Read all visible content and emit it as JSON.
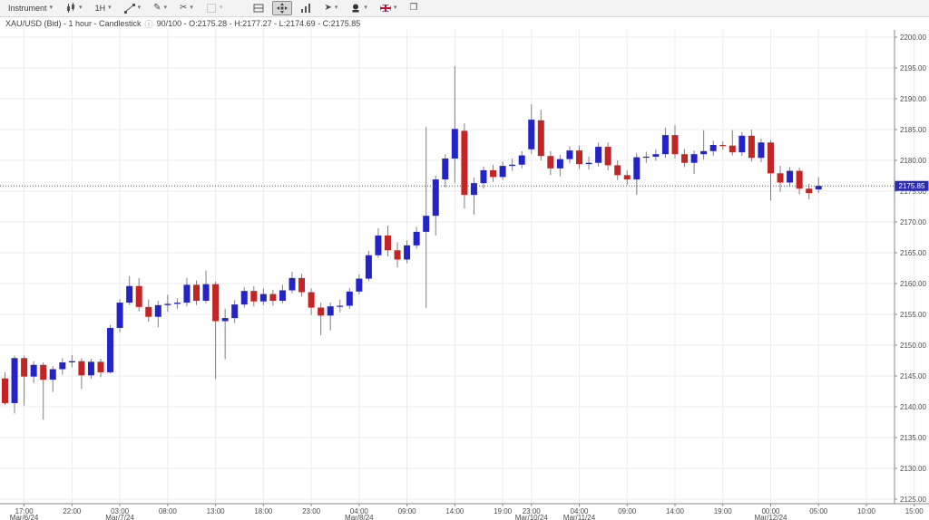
{
  "toolbar": {
    "items": [
      {
        "name": "instrument-selector",
        "label": "Instrument",
        "caret": true
      },
      {
        "name": "chart-type-button",
        "icon": "candlestick-icon",
        "caret": true
      },
      {
        "name": "timeframe-button",
        "label": "1H",
        "caret": true
      },
      {
        "name": "trendline-tool-button",
        "icon": "trendline-icon",
        "caret": true
      },
      {
        "name": "draw-tool-button",
        "icon": "pencil-icon",
        "glyph": "✎",
        "caret": true
      },
      {
        "name": "annotation-tool-button",
        "icon": "scissors-icon",
        "glyph": "✂",
        "caret": true
      },
      {
        "name": "shapes-tool-button",
        "icon": "shape-icon",
        "caret": true,
        "disabled": true
      },
      {
        "name": "split-view-button",
        "icon": "split-icon",
        "gap_before": true
      },
      {
        "name": "fit-chart-button",
        "icon": "expand-icon",
        "active": true
      },
      {
        "name": "volume-button",
        "icon": "bars-icon"
      },
      {
        "name": "pointer-button",
        "icon": "pointer-icon",
        "glyph": "➤",
        "caret": true
      },
      {
        "name": "marker-button",
        "icon": "marker-icon",
        "caret": true
      },
      {
        "name": "language-button",
        "icon": "uk-flag-icon",
        "caret": true
      },
      {
        "name": "windows-button",
        "icon": "window-icon",
        "glyph": "❐"
      }
    ]
  },
  "title_bar": {
    "left": "XAU/USD (Bid) - 1 hour - Candlestick",
    "info_glyph": "ⓘ",
    "right": "90/100 - O:2175.28 - H:2177.27 - L:2174.69 - C:2175.85"
  },
  "chart_data": {
    "type": "candlestick",
    "symbol": "XAU/USD",
    "quote_side": "Bid",
    "timeframe": "1 hour",
    "current_price": 2175.85,
    "current_price_label": "2175.85",
    "last_candle": {
      "open": 2175.28,
      "high": 2177.27,
      "low": 2174.69,
      "close": 2175.85
    },
    "y_axis": {
      "min": 2125,
      "max": 2200,
      "step": 5
    },
    "x_axis": {
      "labels": [
        {
          "i": 2,
          "time": "17:00",
          "date": "Mar/6/24"
        },
        {
          "i": 7,
          "time": "22:00"
        },
        {
          "i": 12,
          "time": "03:00",
          "date": "Mar/7/24"
        },
        {
          "i": 17,
          "time": "08:00"
        },
        {
          "i": 22,
          "time": "13:00"
        },
        {
          "i": 27,
          "time": "18:00"
        },
        {
          "i": 32,
          "time": "23:00"
        },
        {
          "i": 37,
          "time": "04:00",
          "date": "Mar/8/24"
        },
        {
          "i": 42,
          "time": "09:00"
        },
        {
          "i": 47,
          "time": "14:00"
        },
        {
          "i": 52,
          "time": "19:00"
        },
        {
          "i": 55,
          "time": "23:00",
          "date": "Mar/10/24"
        },
        {
          "i": 60,
          "time": "04:00",
          "date": "Mar/11/24"
        },
        {
          "i": 65,
          "time": "09:00"
        },
        {
          "i": 70,
          "time": "14:00"
        },
        {
          "i": 75,
          "time": "19:00"
        },
        {
          "i": 80,
          "time": "00:00",
          "date": "Mar/12/24"
        },
        {
          "i": 85,
          "time": "05:00"
        },
        {
          "i": 90,
          "time": "10:00"
        },
        {
          "i": 95,
          "time": "15:00"
        }
      ]
    },
    "times": [
      "Mar/6 15:00",
      "Mar/6 16:00",
      "Mar/6 17:00",
      "Mar/6 18:00",
      "Mar/6 19:00",
      "Mar/6 20:00",
      "Mar/6 21:00",
      "Mar/6 22:00",
      "Mar/6 23:00",
      "Mar/7 00:00",
      "Mar/7 01:00",
      "Mar/7 02:00",
      "Mar/7 03:00",
      "Mar/7 04:00",
      "Mar/7 05:00",
      "Mar/7 06:00",
      "Mar/7 07:00",
      "Mar/7 08:00",
      "Mar/7 09:00",
      "Mar/7 10:00",
      "Mar/7 11:00",
      "Mar/7 12:00",
      "Mar/7 13:00",
      "Mar/7 14:00",
      "Mar/7 15:00",
      "Mar/7 16:00",
      "Mar/7 17:00",
      "Mar/7 18:00",
      "Mar/7 19:00",
      "Mar/7 20:00",
      "Mar/7 21:00",
      "Mar/7 22:00",
      "Mar/7 23:00",
      "Mar/8 00:00",
      "Mar/8 01:00",
      "Mar/8 02:00",
      "Mar/8 03:00",
      "Mar/8 04:00",
      "Mar/8 05:00",
      "Mar/8 06:00",
      "Mar/8 07:00",
      "Mar/8 08:00",
      "Mar/8 09:00",
      "Mar/8 10:00",
      "Mar/8 11:00",
      "Mar/8 12:00",
      "Mar/8 13:00",
      "Mar/8 14:00",
      "Mar/8 15:00",
      "Mar/8 16:00",
      "Mar/8 17:00",
      "Mar/8 18:00",
      "Mar/8 19:00",
      "Mar/8 20:00",
      "Mar/8 21:00",
      "Mar/10 23:00",
      "Mar/11 00:00",
      "Mar/11 01:00",
      "Mar/11 02:00",
      "Mar/11 03:00",
      "Mar/11 04:00",
      "Mar/11 05:00",
      "Mar/11 06:00",
      "Mar/11 07:00",
      "Mar/11 08:00",
      "Mar/11 09:00",
      "Mar/11 10:00",
      "Mar/11 11:00",
      "Mar/11 12:00",
      "Mar/11 13:00",
      "Mar/11 14:00",
      "Mar/11 15:00",
      "Mar/11 16:00",
      "Mar/11 17:00",
      "Mar/11 18:00",
      "Mar/11 19:00",
      "Mar/11 20:00",
      "Mar/11 21:00",
      "Mar/11 22:00",
      "Mar/11 23:00",
      "Mar/12 00:00",
      "Mar/12 01:00",
      "Mar/12 02:00",
      "Mar/12 03:00",
      "Mar/12 04:00",
      "Mar/12 05:00"
    ],
    "ohlc": [
      [
        2144.6,
        2145.6,
        2140.3,
        2140.6
      ],
      [
        2140.6,
        2148.3,
        2138.9,
        2147.9
      ],
      [
        2147.9,
        2148.3,
        2140.2,
        2144.9
      ],
      [
        2144.9,
        2147.4,
        2143.9,
        2146.8
      ],
      [
        2146.8,
        2147.2,
        2137.9,
        2144.4
      ],
      [
        2144.4,
        2146.6,
        2142.4,
        2146.1
      ],
      [
        2146.1,
        2147.9,
        2145.2,
        2147.2
      ],
      [
        2147.2,
        2148.4,
        2146.4,
        2147.4
      ],
      [
        2147.4,
        2147.9,
        2142.9,
        2145.1
      ],
      [
        2145.1,
        2147.8,
        2144.5,
        2147.3
      ],
      [
        2147.3,
        2147.8,
        2144.8,
        2145.6
      ],
      [
        2145.6,
        2153.3,
        2145.4,
        2152.8
      ],
      [
        2152.8,
        2157.5,
        2152.1,
        2156.9
      ],
      [
        2156.9,
        2161.2,
        2156.5,
        2159.6
      ],
      [
        2159.6,
        2160.9,
        2155.5,
        2156.2
      ],
      [
        2156.2,
        2157.4,
        2153.8,
        2154.6
      ],
      [
        2154.6,
        2157.2,
        2152.9,
        2156.5
      ],
      [
        2156.5,
        2158.2,
        2155.4,
        2156.7
      ],
      [
        2156.7,
        2157.6,
        2155.9,
        2156.9
      ],
      [
        2156.9,
        2160.9,
        2156.3,
        2159.8
      ],
      [
        2159.8,
        2160.5,
        2156.5,
        2157.2
      ],
      [
        2157.2,
        2162.1,
        2156.8,
        2159.9
      ],
      [
        2159.9,
        2160.3,
        2144.5,
        2153.9
      ],
      [
        2153.9,
        2155.9,
        2147.7,
        2154.4
      ],
      [
        2154.4,
        2157.3,
        2153.6,
        2156.6
      ],
      [
        2156.6,
        2159.4,
        2156.1,
        2158.8
      ],
      [
        2158.8,
        2159.6,
        2156.3,
        2157.1
      ],
      [
        2157.1,
        2159.2,
        2156.5,
        2158.3
      ],
      [
        2158.3,
        2159.0,
        2156.4,
        2157.2
      ],
      [
        2157.2,
        2159.8,
        2156.8,
        2158.9
      ],
      [
        2158.9,
        2161.9,
        2158.4,
        2160.9
      ],
      [
        2160.9,
        2161.6,
        2157.9,
        2158.6
      ],
      [
        2158.6,
        2159.2,
        2154.9,
        2156.1
      ],
      [
        2156.1,
        2156.9,
        2151.6,
        2154.8
      ],
      [
        2154.8,
        2156.9,
        2152.4,
        2156.3
      ],
      [
        2156.3,
        2157.4,
        2155.3,
        2156.4
      ],
      [
        2156.4,
        2159.3,
        2155.9,
        2158.7
      ],
      [
        2158.7,
        2161.5,
        2158.2,
        2160.8
      ],
      [
        2160.8,
        2165.3,
        2160.4,
        2164.6
      ],
      [
        2164.6,
        2169.0,
        2164.2,
        2167.8
      ],
      [
        2167.8,
        2169.4,
        2164.4,
        2165.4
      ],
      [
        2165.4,
        2166.7,
        2162.6,
        2163.9
      ],
      [
        2163.9,
        2167.0,
        2163.3,
        2166.2
      ],
      [
        2166.2,
        2169.2,
        2165.7,
        2168.4
      ],
      [
        2168.4,
        2185.4,
        2156.0,
        2171.0
      ],
      [
        2171.0,
        2177.5,
        2167.8,
        2176.9
      ],
      [
        2176.9,
        2181.0,
        2175.6,
        2180.3
      ],
      [
        2180.3,
        2195.3,
        2176.3,
        2185.1
      ],
      [
        2184.8,
        2186.0,
        2172.2,
        2174.4
      ],
      [
        2174.4,
        2177.2,
        2171.2,
        2176.3
      ],
      [
        2176.3,
        2179.0,
        2175.4,
        2178.4
      ],
      [
        2178.4,
        2179.3,
        2176.5,
        2177.3
      ],
      [
        2177.3,
        2179.8,
        2176.8,
        2179.1
      ],
      [
        2179.1,
        2180.3,
        2178.3,
        2179.3
      ],
      [
        2179.3,
        2181.5,
        2178.7,
        2180.8
      ],
      [
        2181.8,
        2189.1,
        2181.0,
        2186.6
      ],
      [
        2186.5,
        2188.2,
        2180.0,
        2180.7
      ],
      [
        2180.7,
        2181.5,
        2177.6,
        2178.7
      ],
      [
        2178.7,
        2180.9,
        2177.4,
        2180.2
      ],
      [
        2180.2,
        2182.3,
        2179.5,
        2181.6
      ],
      [
        2181.6,
        2182.4,
        2178.6,
        2179.4
      ],
      [
        2179.4,
        2180.6,
        2178.5,
        2179.6
      ],
      [
        2179.6,
        2182.9,
        2179.0,
        2182.2
      ],
      [
        2182.2,
        2182.9,
        2178.4,
        2179.2
      ],
      [
        2179.2,
        2180.0,
        2176.8,
        2177.6
      ],
      [
        2177.6,
        2178.4,
        2176.0,
        2176.9
      ],
      [
        2176.9,
        2181.2,
        2174.4,
        2180.5
      ],
      [
        2180.5,
        2181.4,
        2179.6,
        2180.6
      ],
      [
        2180.6,
        2181.8,
        2179.9,
        2181.0
      ],
      [
        2181.0,
        2185.3,
        2180.4,
        2184.1
      ],
      [
        2184.1,
        2185.7,
        2180.3,
        2181.0
      ],
      [
        2181.0,
        2181.8,
        2178.9,
        2179.6
      ],
      [
        2179.6,
        2181.6,
        2177.8,
        2181.0
      ],
      [
        2181.0,
        2184.9,
        2180.1,
        2181.5
      ],
      [
        2181.5,
        2183.2,
        2180.7,
        2182.5
      ],
      [
        2182.5,
        2183.1,
        2181.7,
        2182.4
      ],
      [
        2182.4,
        2184.9,
        2180.8,
        2181.3
      ],
      [
        2181.3,
        2184.6,
        2180.7,
        2184.0
      ],
      [
        2184.0,
        2185.0,
        2179.8,
        2180.4
      ],
      [
        2180.4,
        2183.5,
        2179.7,
        2182.9
      ],
      [
        2182.9,
        2183.3,
        2173.5,
        2177.9
      ],
      [
        2177.9,
        2179.1,
        2174.9,
        2176.4
      ],
      [
        2176.4,
        2178.9,
        2175.7,
        2178.3
      ],
      [
        2178.3,
        2178.8,
        2174.5,
        2175.4
      ],
      [
        2175.4,
        2176.2,
        2173.7,
        2174.7
      ],
      [
        2175.28,
        2177.27,
        2174.69,
        2175.85
      ]
    ],
    "colors": {
      "up": "#2323c8",
      "down": "#c52424",
      "wick": "#808080",
      "grid": "#ececec",
      "axis": "#8a8a8a",
      "label": "#4a4a4a",
      "badge": "#2b2bb2",
      "dotted": "#555555"
    },
    "legend_position": "none",
    "grid": true
  }
}
